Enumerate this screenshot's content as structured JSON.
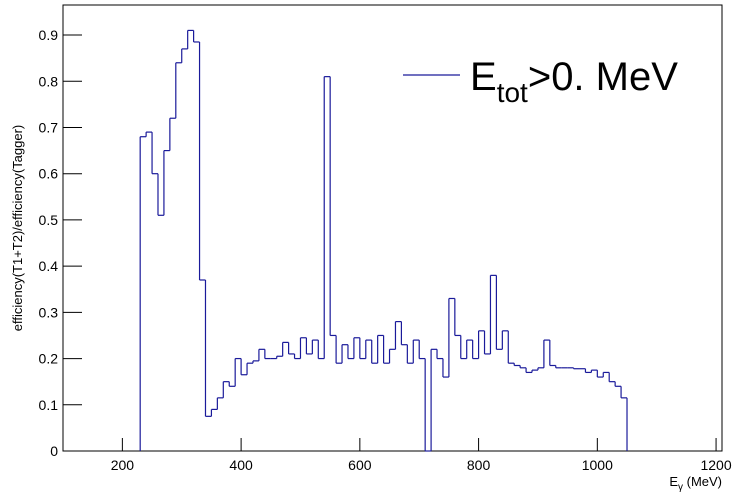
{
  "chart_data": {
    "type": "histogram",
    "ylabel": "efficiency(T1+T2)/efficiency(Tagger)",
    "xlabel": {
      "base": "E",
      "subscript": "γ",
      "rest": " (MeV)"
    },
    "legend": {
      "base": "E",
      "subscript": "tot",
      "rest": ">0. MeV"
    },
    "color": "#1a1a9a",
    "xlim": [
      100,
      1210
    ],
    "ylim": [
      0,
      0.965
    ],
    "xticks": [
      200,
      400,
      600,
      800,
      1000,
      1200
    ],
    "yticks": [
      0,
      0.1,
      0.2,
      0.3,
      0.4,
      0.5,
      0.6,
      0.7,
      0.8,
      0.9
    ],
    "bins": [
      230,
      240,
      250,
      260,
      270,
      280,
      290,
      300,
      310,
      320,
      330,
      340,
      350,
      360,
      370,
      380,
      390,
      400,
      410,
      420,
      430,
      440,
      450,
      460,
      470,
      480,
      490,
      500,
      510,
      520,
      530,
      540,
      550,
      560,
      570,
      580,
      590,
      600,
      610,
      620,
      630,
      640,
      650,
      660,
      670,
      680,
      690,
      700,
      710,
      720,
      730,
      740,
      750,
      760,
      770,
      780,
      790,
      800,
      810,
      820,
      830,
      840,
      850,
      860,
      870,
      880,
      890,
      900,
      910,
      920,
      930,
      940,
      950,
      960,
      970,
      980,
      990,
      1000,
      1010,
      1020,
      1030,
      1040,
      1050
    ],
    "values": [
      0.68,
      0.69,
      0.6,
      0.51,
      0.65,
      0.72,
      0.84,
      0.87,
      0.91,
      0.885,
      0.37,
      0.075,
      0.09,
      0.115,
      0.15,
      0.14,
      0.2,
      0.165,
      0.19,
      0.195,
      0.22,
      0.2,
      0.2,
      0.205,
      0.235,
      0.21,
      0.2,
      0.245,
      0.21,
      0.24,
      0.2,
      0.81,
      0.25,
      0.19,
      0.23,
      0.2,
      0.245,
      0.2,
      0.24,
      0.19,
      0.25,
      0.19,
      0.22,
      0.28,
      0.23,
      0.19,
      0.24,
      0.2,
      0,
      0.22,
      0.2,
      0.16,
      0.33,
      0.25,
      0.2,
      0.24,
      0.2,
      0.26,
      0.21,
      0.38,
      0.22,
      0.26,
      0.19,
      0.185,
      0.18,
      0.17,
      0.175,
      0.18,
      0.24,
      0.185,
      0.18,
      0.18,
      0.18,
      0.178,
      0.178,
      0.17,
      0.175,
      0.16,
      0.17,
      0.15,
      0.14,
      0.115
    ]
  }
}
